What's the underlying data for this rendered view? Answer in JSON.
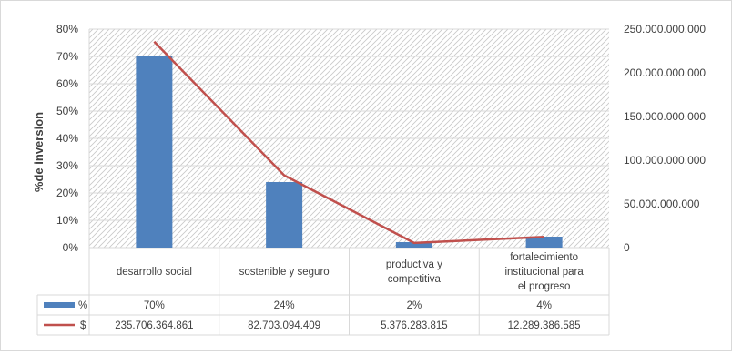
{
  "colors": {
    "bar": "#4f81bd",
    "line": "#c0504d",
    "grid": "#d9d9d9",
    "hatch": "#c8c8c8",
    "text": "#404040"
  },
  "chart_data": {
    "type": "bar",
    "combo": "bar + line on secondary axis",
    "title": "",
    "ylabel": "%de inversion",
    "xlabel": "",
    "categories": [
      [
        "desarrollo social"
      ],
      [
        "sostenible y seguro"
      ],
      [
        "productiva y",
        "competitiva"
      ],
      [
        "fortalecimiento",
        "institucional para",
        "el progreso"
      ]
    ],
    "series": [
      {
        "name": "%",
        "type": "bar",
        "axis": "primary",
        "values": [
          0.7,
          0.24,
          0.02,
          0.04
        ],
        "table_labels": [
          "70%",
          "24%",
          "2%",
          "4%"
        ]
      },
      {
        "name": "$",
        "type": "line",
        "axis": "secondary",
        "values": [
          235706364861,
          82703094409,
          5376283815,
          12289386585
        ],
        "table_labels": [
          "235.706.364.861",
          "82.703.094.409",
          "5.376.283.815",
          "12.289.386.585"
        ]
      }
    ],
    "ylim": [
      0,
      0.8
    ],
    "y_ticks": [
      "0%",
      "10%",
      "20%",
      "30%",
      "40%",
      "50%",
      "60%",
      "70%",
      "80%"
    ],
    "y2lim": [
      0,
      250000000000
    ],
    "y2_ticks": [
      "0",
      "50.000.000.000",
      "100.000.000.000",
      "150.000.000.000",
      "200.000.000.000",
      "250.000.000.000"
    ],
    "grid": true,
    "data_table": true
  }
}
